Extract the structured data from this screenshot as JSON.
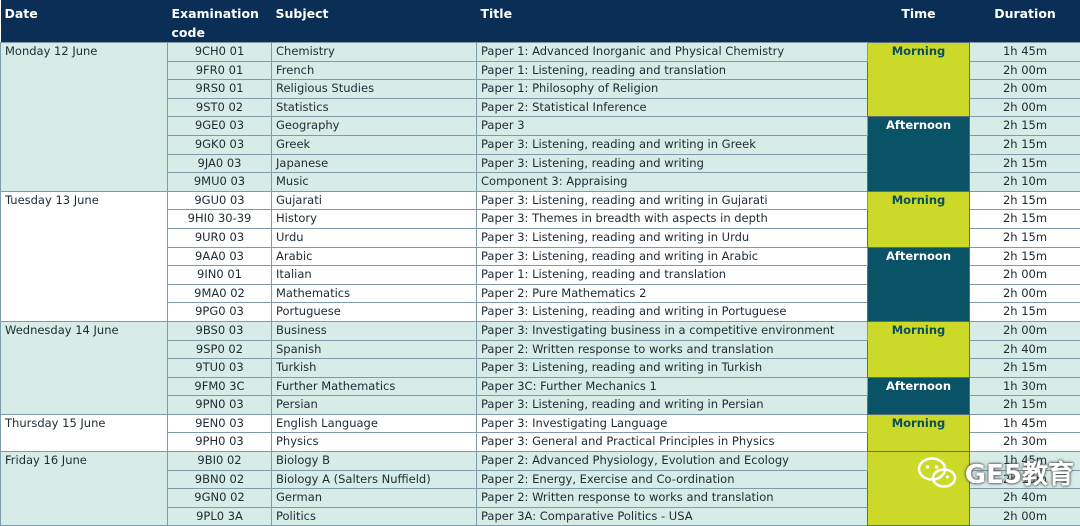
{
  "headers": {
    "date": "Date",
    "code": "Examination code",
    "subject": "Subject",
    "title": "Title",
    "time": "Time",
    "duration": "Duration"
  },
  "days": [
    {
      "date": "Monday 12 June",
      "sessions": [
        {
          "time": "Morning",
          "kind": "am",
          "rows": [
            {
              "code": "9CH0 01",
              "subject": "Chemistry",
              "title": "Paper 1: Advanced Inorganic and Physical Chemistry",
              "duration": "1h 45m"
            },
            {
              "code": "9FR0 01",
              "subject": "French",
              "title": "Paper 1: Listening, reading and translation",
              "duration": "2h 00m"
            },
            {
              "code": "9RS0 01",
              "subject": "Religious Studies",
              "title": "Paper 1: Philosophy of Religion",
              "duration": "2h 00m"
            },
            {
              "code": "9ST0 02",
              "subject": "Statistics",
              "title": "Paper 2: Statistical Inference",
              "duration": "2h 00m"
            }
          ]
        },
        {
          "time": "Afternoon",
          "kind": "pm",
          "rows": [
            {
              "code": "9GE0 03",
              "subject": "Geography",
              "title": "Paper 3",
              "duration": "2h 15m"
            },
            {
              "code": "9GK0 03",
              "subject": "Greek",
              "title": "Paper 3: Listening, reading and writing in Greek",
              "duration": "2h 15m"
            },
            {
              "code": "9JA0 03",
              "subject": "Japanese",
              "title": "Paper 3: Listening, reading and writing",
              "duration": "2h 15m"
            },
            {
              "code": "9MU0 03",
              "subject": "Music",
              "title": "Component 3: Appraising",
              "duration": "2h 10m"
            }
          ]
        }
      ]
    },
    {
      "date": "Tuesday 13 June",
      "sessions": [
        {
          "time": "Morning",
          "kind": "am",
          "rows": [
            {
              "code": "9GU0 03",
              "subject": "Gujarati",
              "title": "Paper 3: Listening, reading and writing in Gujarati",
              "duration": "2h 15m"
            },
            {
              "code": "9HI0 30-39",
              "subject": "History",
              "title": "Paper 3: Themes in breadth with aspects in depth",
              "duration": "2h 15m"
            },
            {
              "code": "9UR0 03",
              "subject": "Urdu",
              "title": "Paper 3: Listening, reading and writing in Urdu",
              "duration": "2h 15m"
            }
          ]
        },
        {
          "time": "Afternoon",
          "kind": "pm",
          "rows": [
            {
              "code": "9AA0 03",
              "subject": "Arabic",
              "title": "Paper 3: Listening, reading and writing in Arabic",
              "duration": "2h 15m"
            },
            {
              "code": "9IN0 01",
              "subject": "Italian",
              "title": "Paper 1: Listening, reading and translation",
              "duration": "2h 00m"
            },
            {
              "code": "9MA0 02",
              "subject": "Mathematics",
              "title": "Paper 2: Pure Mathematics 2",
              "duration": "2h 00m"
            },
            {
              "code": "9PG0 03",
              "subject": "Portuguese",
              "title": "Paper 3: Listening, reading and writing in Portuguese",
              "duration": "2h 15m"
            }
          ]
        }
      ]
    },
    {
      "date": "Wednesday 14 June",
      "sessions": [
        {
          "time": "Morning",
          "kind": "am",
          "rows": [
            {
              "code": "9BS0 03",
              "subject": "Business",
              "title": "Paper 3: Investigating business in a competitive environment",
              "duration": "2h 00m"
            },
            {
              "code": "9SP0 02",
              "subject": "Spanish",
              "title": "Paper 2: Written response to works and translation",
              "duration": "2h 40m"
            },
            {
              "code": "9TU0 03",
              "subject": "Turkish",
              "title": "Paper 3: Listening, reading and writing in Turkish",
              "duration": "2h 15m"
            }
          ]
        },
        {
          "time": "Afternoon",
          "kind": "pm",
          "rows": [
            {
              "code": "9FM0 3C",
              "subject": "Further Mathematics",
              "title": "Paper 3C: Further Mechanics 1",
              "duration": "1h 30m"
            },
            {
              "code": "9PN0 03",
              "subject": "Persian",
              "title": "Paper 3: Listening, reading and writing in Persian",
              "duration": "2h 15m"
            }
          ]
        }
      ]
    },
    {
      "date": "Thursday 15 June",
      "sessions": [
        {
          "time": "Morning",
          "kind": "am",
          "rows": [
            {
              "code": "9EN0 03",
              "subject": "English Language",
              "title": "Paper 3: Investigating Language",
              "duration": "1h 45m"
            },
            {
              "code": "9PH0 03",
              "subject": "Physics",
              "title": "Paper 3: General and Practical Principles in Physics",
              "duration": "2h 30m"
            }
          ]
        }
      ]
    },
    {
      "date": "Friday 16 June",
      "sessions": [
        {
          "time": "",
          "kind": "am",
          "rows": [
            {
              "code": "9BI0 02",
              "subject": "Biology B",
              "title": "Paper 2: Advanced Physiology, Evolution and Ecology",
              "duration": "1h 45m"
            },
            {
              "code": "9BN0 02",
              "subject": "Biology A (Salters Nuffield)",
              "title": "Paper 2: Energy, Exercise and Co-ordination",
              "duration": "2h 15m"
            },
            {
              "code": "9GN0 02",
              "subject": "German",
              "title": "Paper 2: Written response to works and translation",
              "duration": "2h 40m"
            },
            {
              "code": "9PL0 3A",
              "subject": "Politics",
              "title": "Paper 3A: Comparative Politics - USA",
              "duration": "2h 00m"
            }
          ]
        }
      ]
    }
  ],
  "watermark": {
    "text": "GE5教育",
    "icon": "wechat-icon"
  }
}
